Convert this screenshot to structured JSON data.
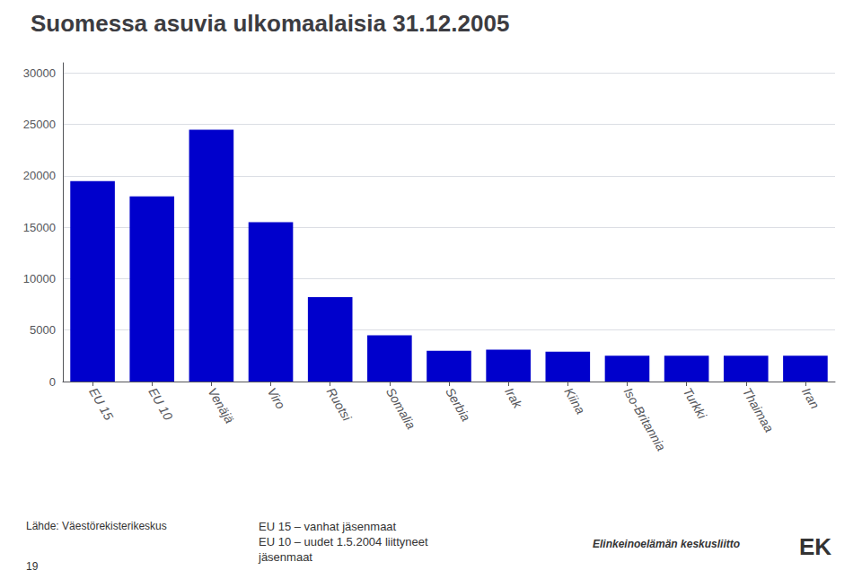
{
  "chart_data": {
    "type": "bar",
    "title": "Suomessa asuvia ulkomaalaisia 31.12.2005",
    "categories": [
      "EU 15",
      "EU 10",
      "Venäjä",
      "Viro",
      "Ruotsi",
      "Somalia",
      "Serbia",
      "Irak",
      "Kiina",
      "Iso-Britannia",
      "Turkki",
      "Thaimaa",
      "Iran"
    ],
    "values": [
      19500,
      18000,
      24500,
      15500,
      8200,
      4500,
      3000,
      3100,
      2900,
      2500,
      2500,
      2500,
      2500
    ],
    "color": "#0000cc",
    "ylim": [
      0,
      31000
    ],
    "yticks": [
      0,
      5000,
      10000,
      15000,
      20000,
      25000,
      30000
    ],
    "grid": true,
    "annotations": [
      "Lähde: Väestörekisterikeskus",
      "19",
      "EU 15 – vanhat jäsenmaat",
      "EU 10 – uudet 1.5.2004 liittyneet",
      "jäsenmaat",
      "Elinkeinoelämän keskusliitto",
      "EK"
    ]
  }
}
